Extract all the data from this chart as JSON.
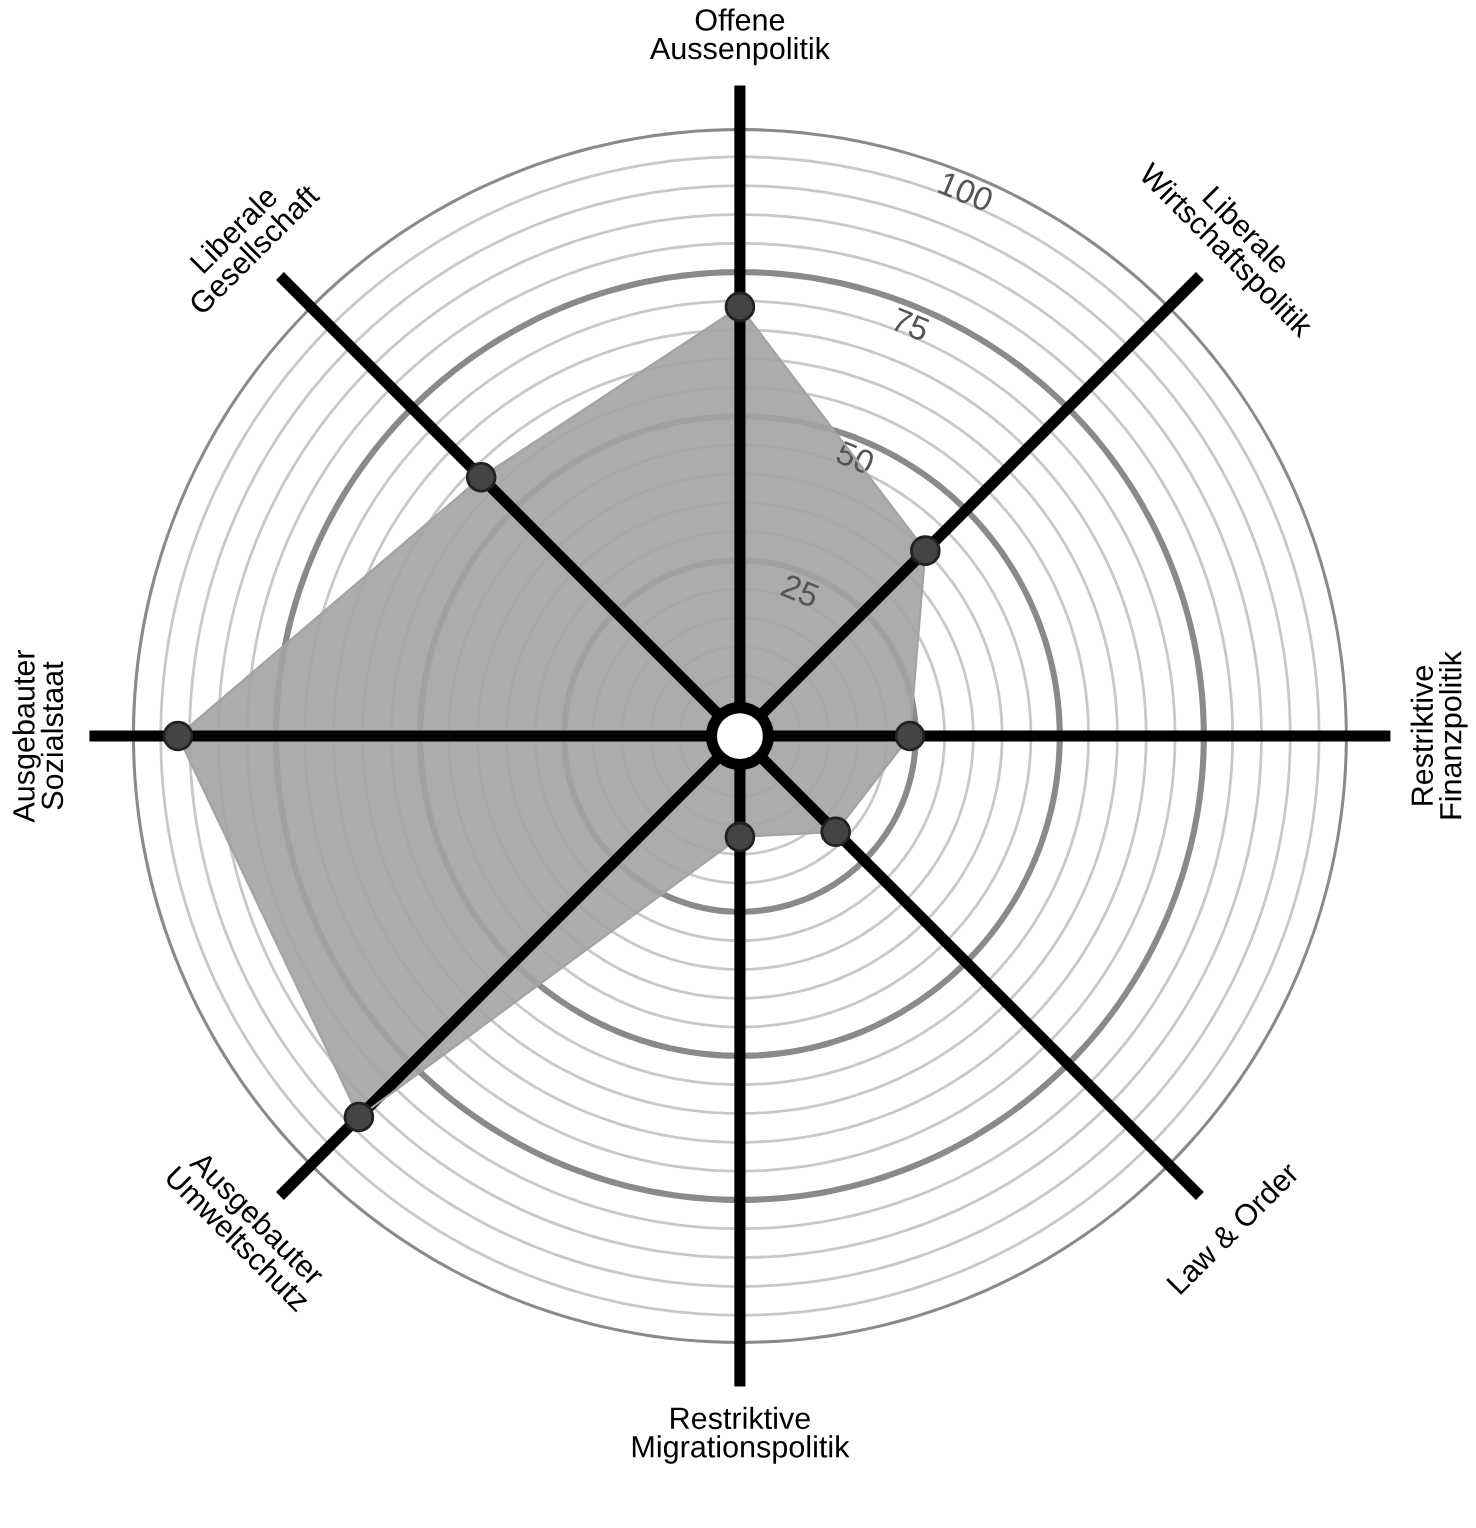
{
  "chart_data": {
    "type": "radar",
    "categories": [
      "Offene\nAussenpolitik",
      "Liberale\nWirtschaftspolitik",
      "Restriktive\nFinanzpolitik",
      "Law & Order",
      "Restriktive\nMigrationspolitik",
      "Ausgebauter\nUmweltschutz",
      "Ausgebauter\nSozialstaat",
      "Liberale\nGesellschaft"
    ],
    "series": [
      {
        "color": "#a3a3a3",
        "values": [
          69,
          40,
          24,
          18,
          12,
          88,
          92,
          58
        ]
      }
    ],
    "ylim": [
      -5.5,
      100
    ],
    "yticks": [
      25,
      50,
      75,
      100
    ],
    "grid": true,
    "marker": "circle"
  }
}
